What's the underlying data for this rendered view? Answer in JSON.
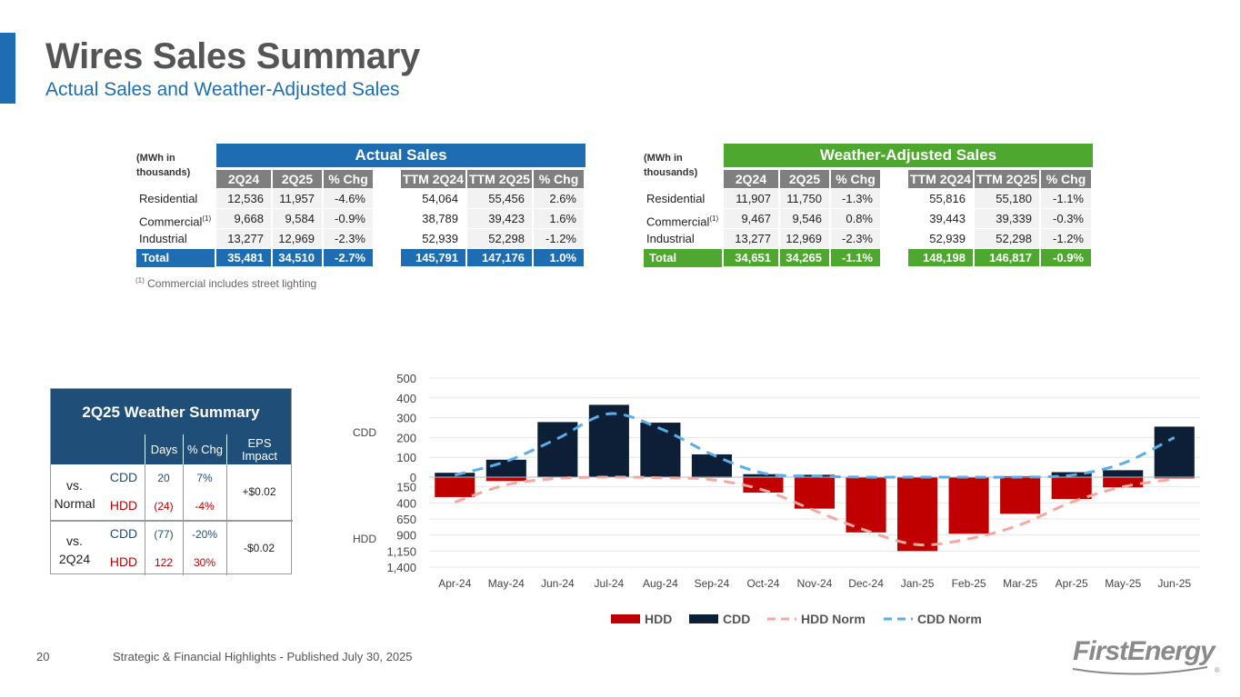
{
  "header": {
    "title": "Wires Sales Summary",
    "subtitle": "Actual Sales and Weather-Adjusted Sales"
  },
  "actual_sales": {
    "band_title": "Actual Sales",
    "unit_label_1": "(MWh in",
    "unit_label_2": "thousands)",
    "columns": [
      "2Q24",
      "2Q25",
      "% Chg",
      "TTM 2Q24",
      "TTM 2Q25",
      "% Chg"
    ],
    "rows": [
      {
        "label": "Residential",
        "sup": "",
        "values": [
          "12,536",
          "11,957",
          "-4.6%",
          "54,064",
          "55,456",
          "2.6%"
        ]
      },
      {
        "label": "Commercial",
        "sup": "(1)",
        "values": [
          "9,668",
          "9,584",
          "-0.9%",
          "38,789",
          "39,423",
          "1.6%"
        ]
      },
      {
        "label": "Industrial",
        "sup": "",
        "values": [
          "13,277",
          "12,969",
          "-2.3%",
          "52,939",
          "52,298",
          "-1.2%"
        ]
      },
      {
        "label": "Total",
        "sup": "",
        "values": [
          "35,481",
          "34,510",
          "-2.7%",
          "145,791",
          "147,176",
          "1.0%"
        ]
      }
    ]
  },
  "weather_adjusted_sales": {
    "band_title": "Weather-Adjusted Sales",
    "unit_label_1": "(MWh in",
    "unit_label_2": "thousands)",
    "columns": [
      "2Q24",
      "2Q25",
      "% Chg",
      "TTM 2Q24",
      "TTM 2Q25",
      "% Chg"
    ],
    "rows": [
      {
        "label": "Residential",
        "sup": "",
        "values": [
          "11,907",
          "11,750",
          "-1.3%",
          "55,816",
          "55,180",
          "-1.1%"
        ]
      },
      {
        "label": "Commercial",
        "sup": "(1)",
        "values": [
          "9,467",
          "9,546",
          "0.8%",
          "39,443",
          "39,339",
          "-0.3%"
        ]
      },
      {
        "label": "Industrial",
        "sup": "",
        "values": [
          "13,277",
          "12,969",
          "-2.3%",
          "52,939",
          "52,298",
          "-1.2%"
        ]
      },
      {
        "label": "Total",
        "sup": "",
        "values": [
          "34,651",
          "34,265",
          "-1.1%",
          "148,198",
          "146,817",
          "-0.9%"
        ]
      }
    ]
  },
  "footnote": {
    "sup": "(1)",
    "text": "Commercial includes street lighting"
  },
  "weather_summary": {
    "title": "2Q25 Weather Summary",
    "col_days": "Days",
    "col_pct": "% Chg",
    "col_eps_1": "EPS",
    "col_eps_2": "Impact",
    "vs_normal_1": "vs.",
    "vs_normal_2": "Normal",
    "vs_prior_1": "vs.",
    "vs_prior_2": "2Q24",
    "cdd_label": "CDD",
    "hdd_label": "HDD",
    "normal_cdd_days": "20",
    "normal_cdd_pct": "7%",
    "normal_hdd_days": "(24)",
    "normal_hdd_pct": "-4%",
    "normal_eps": "+$0.02",
    "prior_cdd_days": "(77)",
    "prior_cdd_pct": "-20%",
    "prior_hdd_days": "122",
    "prior_hdd_pct": "30%",
    "prior_eps": "-$0.02"
  },
  "chart_data": {
    "type": "bar",
    "categories": [
      "Apr-24",
      "May-24",
      "Jun-24",
      "Jul-24",
      "Aug-24",
      "Sep-24",
      "Oct-24",
      "Nov-24",
      "Dec-24",
      "Jan-25",
      "Feb-25",
      "Mar-25",
      "Apr-25",
      "May-25",
      "Jun-25"
    ],
    "cdd_axis_label": "CDD",
    "hdd_axis_label": "HDD",
    "cdd_ticks": [
      "500",
      "400",
      "300",
      "200",
      "100",
      "0"
    ],
    "hdd_ticks": [
      "150",
      "400",
      "650",
      "900",
      "1,150",
      "1,400"
    ],
    "cdd_range": [
      0,
      500
    ],
    "hdd_range": [
      0,
      1400
    ],
    "series": [
      {
        "name": "HDD",
        "color": "#c00000",
        "values": [
          310,
          60,
          0,
          0,
          0,
          10,
          240,
          490,
          860,
          1150,
          880,
          570,
          340,
          160,
          20
        ]
      },
      {
        "name": "CDD",
        "color": "#0c1f36",
        "values": [
          22,
          88,
          278,
          365,
          275,
          115,
          15,
          12,
          0,
          0,
          0,
          5,
          25,
          35,
          255
        ]
      },
      {
        "name": "HDD Norm",
        "color": "#f4a8a0",
        "values": [
          390,
          120,
          20,
          0,
          10,
          40,
          200,
          520,
          830,
          1050,
          960,
          740,
          390,
          150,
          30
        ]
      },
      {
        "name": "CDD Norm",
        "color": "#5aaee8",
        "values": [
          10,
          80,
          195,
          320,
          245,
          115,
          20,
          5,
          0,
          0,
          0,
          0,
          10,
          70,
          200
        ]
      }
    ]
  },
  "footer": {
    "page_number": "20",
    "text": "Strategic & Financial Highlights - Published July 30, 2025",
    "logo_text": "FirstEnergy",
    "logo_mark": "®"
  }
}
